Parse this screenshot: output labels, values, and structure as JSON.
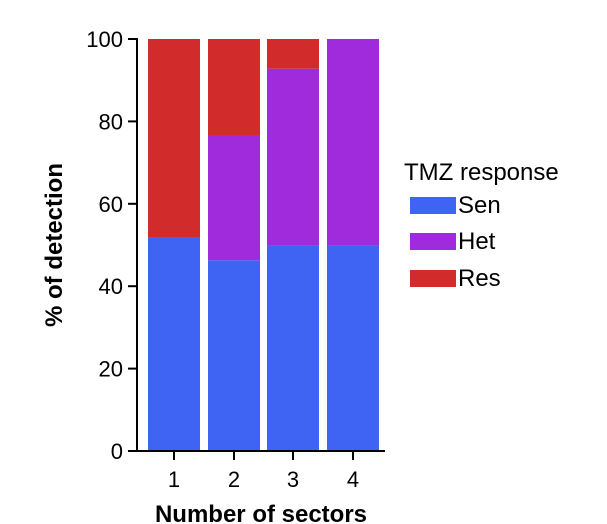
{
  "chart_data": {
    "type": "bar",
    "stacked": true,
    "categories": [
      "1",
      "2",
      "3",
      "4"
    ],
    "series": [
      {
        "name": "Sen",
        "color": "#3f63f3",
        "values": [
          51.8,
          46.3,
          49.9,
          49.9
        ]
      },
      {
        "name": "Het",
        "color": "#a02bdc",
        "values": [
          0,
          30.4,
          42.9,
          50.1
        ]
      },
      {
        "name": "Res",
        "color": "#d12b2b",
        "values": [
          48.2,
          23.3,
          7.2,
          0
        ]
      }
    ],
    "xlabel": "Number of sectors",
    "ylabel": "% of detection",
    "ylim": [
      0,
      100
    ],
    "yticks": [
      0,
      20,
      40,
      60,
      80,
      100
    ],
    "legend": {
      "title": "TMZ response",
      "placement": "right"
    },
    "grid": false
  }
}
